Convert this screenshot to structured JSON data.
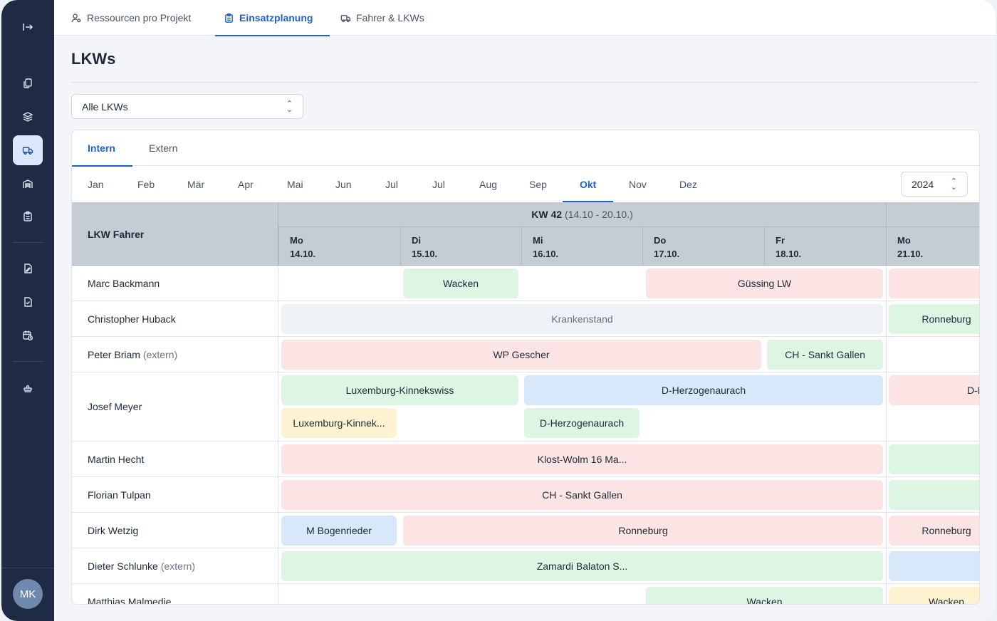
{
  "nav": {
    "tabs": [
      {
        "label": "Ressourcen pro Projekt",
        "icon": "user-gear-icon"
      },
      {
        "label": "Einsatzplanung",
        "icon": "clipboard-icon",
        "active": true
      },
      {
        "label": "Fahrer & LKWs",
        "icon": "truck-icon"
      }
    ]
  },
  "sidebar": {
    "items": [
      "expand-icon",
      "copy-icon",
      "layers-icon",
      "truck-icon",
      "warehouse-icon",
      "clipboard-icon",
      "edit-document-icon",
      "check-document-icon",
      "calendar-clock-icon",
      "stamp-icon"
    ],
    "avatar": "MK"
  },
  "page": {
    "title": "LKWs",
    "filter": "Alle LKWs",
    "subtabs": [
      "Intern",
      "Extern"
    ],
    "months": [
      "Jan",
      "Feb",
      "Mär",
      "Apr",
      "Mai",
      "Jun",
      "Jul",
      "Jul",
      "Aug",
      "Sep",
      "Okt",
      "Nov",
      "Dez"
    ],
    "active_month": "Okt",
    "year": "2024"
  },
  "grid": {
    "col_header": "LKW Fahrer",
    "week_label": "KW 42",
    "week_range": "(14.10 - 20.10.)",
    "days": [
      {
        "name": "Mo",
        "date": "14.10."
      },
      {
        "name": "Di",
        "date": "15.10."
      },
      {
        "name": "Mi",
        "date": "16.10."
      },
      {
        "name": "Do",
        "date": "17.10."
      },
      {
        "name": "Fr",
        "date": "18.10."
      },
      {
        "name": "Mo",
        "date": "21.10."
      }
    ],
    "rows": [
      {
        "name": "Marc Backmann",
        "ext": ""
      },
      {
        "name": "Christopher Huback",
        "ext": ""
      },
      {
        "name": "Peter Briam",
        "ext": "(extern)"
      },
      {
        "name": "Josef Meyer",
        "ext": ""
      },
      {
        "name": "Martin Hecht",
        "ext": ""
      },
      {
        "name": "Florian Tulpan",
        "ext": ""
      },
      {
        "name": "Dirk Wetzig",
        "ext": ""
      },
      {
        "name": "Dieter Schlunke",
        "ext": "(extern)"
      },
      {
        "name": "Matthias Malmedie",
        "ext": ""
      }
    ],
    "bookings": {
      "r0": [
        "Wacken",
        "Güssing LW",
        ""
      ],
      "r1": [
        "Krankenstand",
        "Ronneburg"
      ],
      "r2": [
        "WP Gescher",
        "CH - Sankt Gallen"
      ],
      "r3": [
        "Luxemburg-Kinnekswiss",
        "D-Herzogenaurach",
        "D-H",
        "Luxemburg-Kinnek...",
        "D-Herzogenaurach"
      ],
      "r4": [
        "Klost-Wolm 16 Ma...",
        ""
      ],
      "r5": [
        "CH - Sankt Gallen",
        ""
      ],
      "r6": [
        "M Bogenrieder",
        "Ronneburg",
        "Ronneburg"
      ],
      "r7": [
        "Zamardi Balaton S...",
        ""
      ],
      "r8": [
        "Wacken",
        "Wacken"
      ]
    }
  },
  "colors": {
    "accent": "#1f63c6",
    "sidebar": "#1f2b45",
    "green": "#ddf5e3",
    "red": "#fde4e4",
    "blue": "#d9e7fb",
    "yellow": "#fdf3d1",
    "gray": "#eef1f6"
  }
}
